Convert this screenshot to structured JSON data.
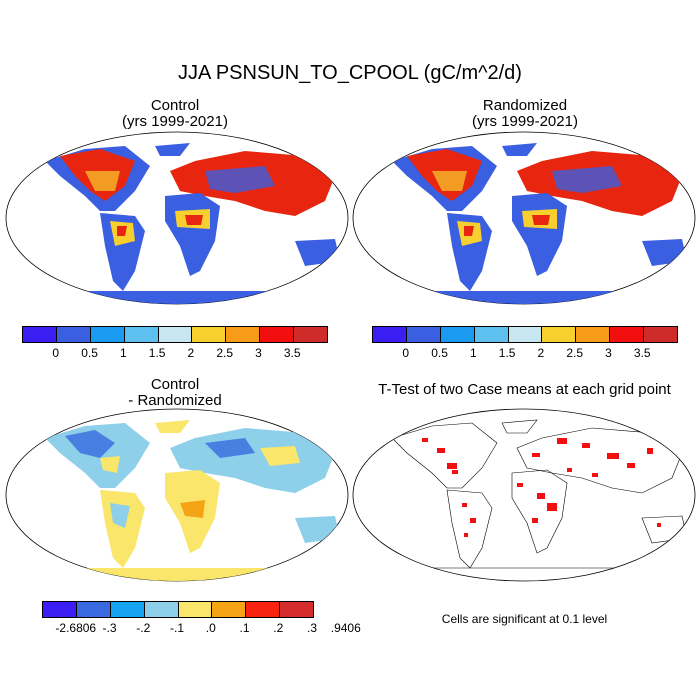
{
  "title": "JJA PSNSUN_TO_CPOOL (gC/m^2/d)",
  "panels": {
    "control": {
      "line1": "Control",
      "line2": "(yrs 1999-2021)"
    },
    "randomized": {
      "line1": "Randomized",
      "line2": "(yrs 1999-2021)"
    },
    "difference": {
      "line1": "Control",
      "line2": "- Randomized"
    },
    "ttest": {
      "line1": "T-Test of two Case means at each grid point",
      "note": "Cells are significant at 0.1 level"
    }
  },
  "colorbars": {
    "absolute": {
      "colors": [
        "#3b1ef2",
        "#3a5fe0",
        "#1a9af0",
        "#5ec0ee",
        "#c8e6f0",
        "#f7cf2e",
        "#f89b18",
        "#f20f0f",
        "#d02b2b"
      ],
      "labels": [
        "0",
        "0.5",
        "1",
        "1.5",
        "2",
        "2.5",
        "3",
        "3.5"
      ]
    },
    "difference": {
      "colors": [
        "#3b1ef2",
        "#3a6ae0",
        "#16a3f2",
        "#8ecfea",
        "#f9e66a",
        "#f5a416",
        "#f8230f",
        "#d52d2d"
      ],
      "labels": [
        "-2.6806",
        "-.3",
        "-.2",
        "-.1",
        ".0",
        ".1",
        ".2",
        ".3",
        ".9406"
      ]
    }
  }
}
